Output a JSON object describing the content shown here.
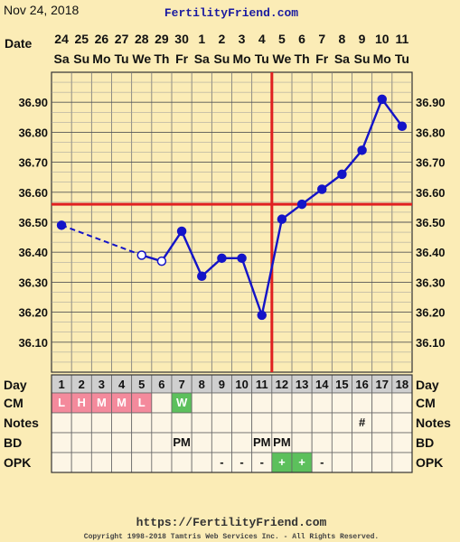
{
  "header": {
    "date": "Nov 24, 2018",
    "site": "FertilityFriend.com",
    "date_label": "Date"
  },
  "chart_data": {
    "type": "line",
    "title": "",
    "dates": [
      "24",
      "25",
      "26",
      "27",
      "28",
      "29",
      "30",
      "1",
      "2",
      "3",
      "4",
      "5",
      "6",
      "7",
      "8",
      "9",
      "10",
      "11"
    ],
    "weekdays": [
      "Sa",
      "Su",
      "Mo",
      "Tu",
      "We",
      "Th",
      "Fr",
      "Sa",
      "Su",
      "Mo",
      "Tu",
      "We",
      "Th",
      "Fr",
      "Sa",
      "Su",
      "Mo",
      "Tu"
    ],
    "cycle_days": [
      "1",
      "2",
      "3",
      "4",
      "5",
      "6",
      "7",
      "8",
      "9",
      "10",
      "11",
      "12",
      "13",
      "14",
      "15",
      "16",
      "17",
      "18"
    ],
    "temps": [
      36.49,
      null,
      null,
      null,
      36.39,
      36.37,
      36.47,
      36.32,
      36.38,
      36.38,
      36.19,
      36.51,
      36.56,
      36.61,
      36.66,
      36.74,
      36.91,
      36.82
    ],
    "open_points": [
      4,
      5
    ],
    "dashed_segment": [
      0,
      4
    ],
    "yticks": [
      "36.10",
      "36.20",
      "36.30",
      "36.40",
      "36.50",
      "36.60",
      "36.70",
      "36.80",
      "36.90"
    ],
    "ylim": [
      36.0,
      37.0
    ],
    "coverline": 36.56,
    "ovulation_day_index": 11,
    "line_color": "#1414c8",
    "coverline_color": "#e02020",
    "grid": true
  },
  "table": {
    "rows": [
      {
        "label": "Day"
      },
      {
        "label": "CM",
        "cells": [
          "L",
          "H",
          "M",
          "M",
          "L",
          "",
          "W",
          "",
          "",
          "",
          "",
          "",
          "",
          "",
          "",
          "",
          "",
          ""
        ]
      },
      {
        "label": "Notes",
        "cells": [
          "",
          "",
          "",
          "",
          "",
          "",
          "",
          "",
          "",
          "",
          "",
          "",
          "",
          "",
          "",
          "#",
          "",
          ""
        ]
      },
      {
        "label": "BD",
        "cells": [
          "",
          "",
          "",
          "",
          "",
          "",
          "PM",
          "",
          "",
          "",
          "PM",
          "PM",
          "",
          "",
          "",
          "",
          "",
          ""
        ]
      },
      {
        "label": "OPK",
        "cells": [
          "",
          "",
          "",
          "",
          "",
          "",
          "",
          "",
          "-",
          "-",
          "-",
          "+",
          "+",
          "-",
          "",
          "",
          "",
          ""
        ]
      }
    ],
    "cm_color": "#f48a9c",
    "cm_w_color": "#5cc05c",
    "opk_pos_color": "#5cc05c"
  },
  "footer": {
    "url": "https://FertilityFriend.com",
    "copyright": "Copyright 1998-2018 Tamtris Web Services Inc. - All Rights Reserved."
  }
}
